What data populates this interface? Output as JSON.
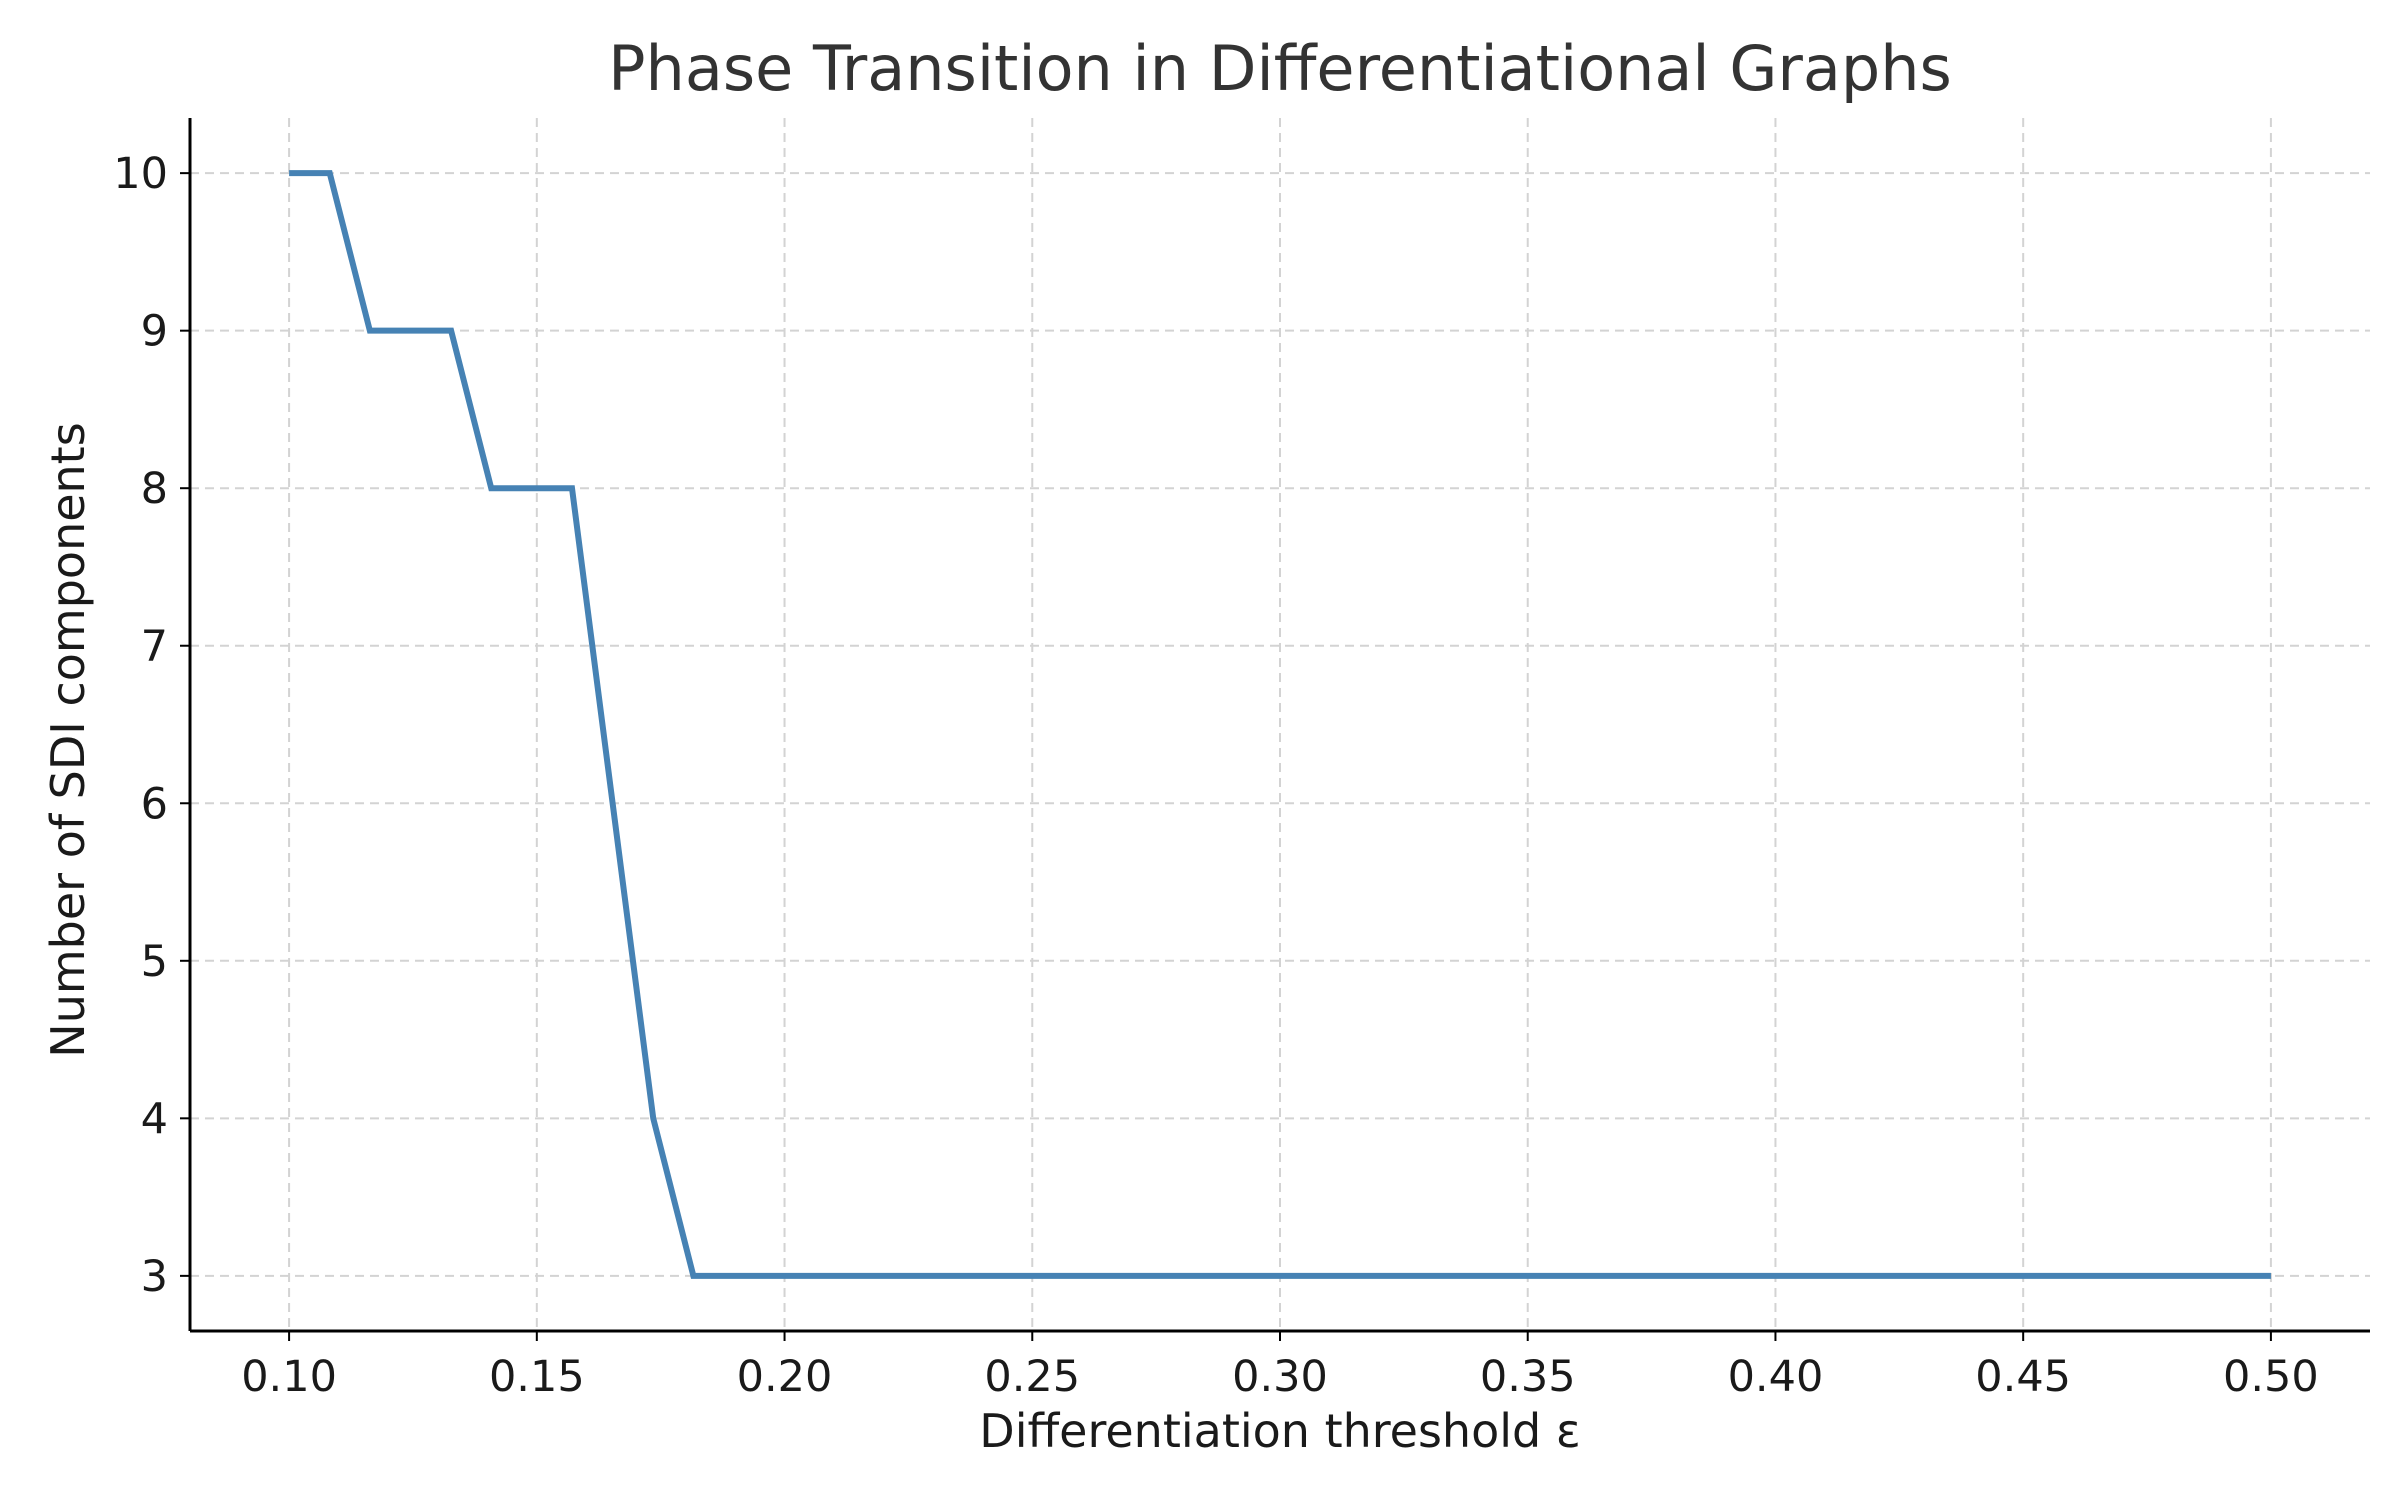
{
  "chart_data": {
    "type": "line",
    "title": "Phase Transition in Differentiational Graphs",
    "xlabel": "Differentiation threshold ε",
    "ylabel": "Number of SDI components",
    "xlim": [
      0.08,
      0.52
    ],
    "ylim": [
      2.65,
      10.35
    ],
    "grid": true,
    "legend": "none",
    "x_ticks": [
      "0.10",
      "0.15",
      "0.20",
      "0.25",
      "0.30",
      "0.35",
      "0.40",
      "0.45",
      "0.50"
    ],
    "y_ticks": [
      "3",
      "4",
      "5",
      "6",
      "7",
      "8",
      "9",
      "10"
    ],
    "series": [
      {
        "color": "#4682b4",
        "x": [
          0.1,
          0.1082,
          0.1163,
          0.1245,
          0.1327,
          0.1408,
          0.149,
          0.1571,
          0.1653,
          0.1735,
          0.1816,
          0.1898,
          0.198,
          0.2061,
          0.2143,
          0.2224,
          0.2306,
          0.2388,
          0.2469,
          0.2551,
          0.2633,
          0.2714,
          0.2796,
          0.2878,
          0.2959,
          0.3041,
          0.3122,
          0.3204,
          0.3286,
          0.3367,
          0.3449,
          0.3531,
          0.3612,
          0.3694,
          0.3776,
          0.3857,
          0.3939,
          0.402,
          0.4102,
          0.4184,
          0.4265,
          0.4347,
          0.4429,
          0.451,
          0.4592,
          0.4673,
          0.4755,
          0.4837,
          0.4918,
          0.5
        ],
        "y": [
          10,
          10,
          9,
          9,
          9,
          8,
          8,
          8,
          6,
          4,
          3,
          3,
          3,
          3,
          3,
          3,
          3,
          3,
          3,
          3,
          3,
          3,
          3,
          3,
          3,
          3,
          3,
          3,
          3,
          3,
          3,
          3,
          3,
          3,
          3,
          3,
          3,
          3,
          3,
          3,
          3,
          3,
          3,
          3,
          3,
          3,
          3,
          3,
          3,
          3
        ]
      }
    ]
  }
}
